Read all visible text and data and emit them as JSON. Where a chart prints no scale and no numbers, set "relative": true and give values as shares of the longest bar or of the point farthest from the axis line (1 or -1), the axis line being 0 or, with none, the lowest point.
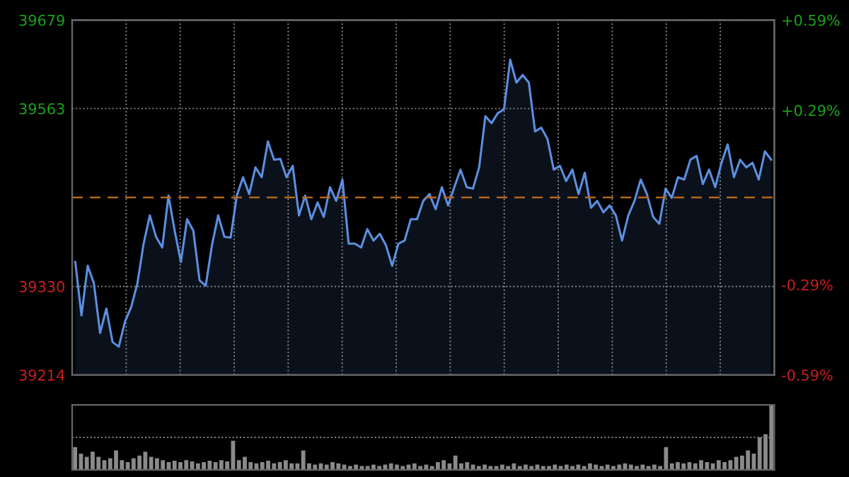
{
  "chart_data": [
    {
      "type": "area",
      "categories": [
        null,
        null,
        null,
        null,
        null,
        null,
        null,
        null,
        null,
        null,
        null,
        null,
        null,
        null,
        null,
        null,
        null,
        null,
        null,
        null,
        null,
        null,
        null,
        null,
        null,
        null,
        null,
        null,
        null,
        null,
        null,
        null,
        null,
        null,
        null,
        null,
        null,
        null,
        null,
        null,
        null,
        null,
        null,
        null,
        null,
        null,
        null,
        null,
        null,
        null,
        null,
        null,
        null,
        null,
        null,
        null,
        null,
        null,
        null,
        null,
        null,
        null,
        null,
        null,
        null,
        null,
        null,
        null,
        null,
        null,
        null,
        null,
        null,
        null,
        null,
        null,
        null,
        null,
        null,
        null,
        null,
        null,
        null,
        null,
        null,
        null,
        null,
        null,
        null,
        null,
        null,
        null,
        null,
        null,
        null,
        null,
        null,
        null,
        null,
        null,
        null,
        null,
        null,
        null,
        null,
        null,
        null,
        null,
        null,
        null,
        null,
        null,
        null
      ],
      "series": [
        {
          "color": "#5b8fe0",
          "values": [
            39362,
            39292,
            39357,
            39334,
            39269,
            39301,
            39257,
            39251,
            39284,
            39303,
            39334,
            39386,
            39423,
            39395,
            39381,
            39449,
            39403,
            39362,
            39418,
            39403,
            39338,
            39331,
            39384,
            39423,
            39395,
            39394,
            39449,
            39473,
            39451,
            39486,
            39473,
            39520,
            39496,
            39497,
            39473,
            39488,
            39423,
            39449,
            39418,
            39440,
            39421,
            39460,
            39442,
            39470,
            39386,
            39386,
            39381,
            39405,
            39390,
            39399,
            39384,
            39357,
            39386,
            39390,
            39418,
            39418,
            39442,
            39451,
            39431,
            39460,
            39436,
            39460,
            39483,
            39460,
            39458,
            39486,
            39553,
            39544,
            39557,
            39562,
            39627,
            39597,
            39607,
            39597,
            39533,
            39538,
            39523,
            39483,
            39488,
            39468,
            39483,
            39451,
            39479,
            39433,
            39442,
            39427,
            39436,
            39423,
            39390,
            39423,
            39442,
            39470,
            39451,
            39421,
            39412,
            39458,
            39446,
            39473,
            39470,
            39496,
            39501,
            39464,
            39483,
            39460,
            39492,
            39516,
            39473,
            39496,
            39486,
            39492,
            39470,
            39507,
            39496
          ]
        }
      ],
      "ylim": [
        39214,
        39679
      ],
      "yticks": [
        39214,
        39330,
        39563,
        39679
      ],
      "y2lim": [
        -0.59,
        0.59
      ],
      "y2ticks": [
        {
          "value": 0.59,
          "label": "+0.59%"
        },
        {
          "value": 0.29,
          "label": "+0.29%"
        },
        {
          "value": -0.29,
          "label": "-0.29%"
        },
        {
          "value": -0.59,
          "label": "-0.59%"
        }
      ],
      "ref_lines": [
        {
          "axis": "y",
          "value": 39446.5,
          "color": "#b5651d",
          "line_style": "dashed"
        }
      ],
      "grid": true,
      "legend": false
    },
    {
      "type": "bar",
      "relative": true,
      "color": "#8a8a8a",
      "ref_lines": [
        {
          "axis": "y",
          "value": 0.5,
          "color": "#888888",
          "line_style": "dotted"
        }
      ],
      "categories": [
        null,
        null,
        null,
        null,
        null,
        null,
        null,
        null,
        null,
        null,
        null,
        null,
        null,
        null,
        null,
        null,
        null,
        null,
        null,
        null,
        null,
        null,
        null,
        null,
        null,
        null,
        null,
        null,
        null,
        null,
        null,
        null,
        null,
        null,
        null,
        null,
        null,
        null,
        null,
        null,
        null,
        null,
        null,
        null,
        null,
        null,
        null,
        null,
        null,
        null,
        null,
        null,
        null,
        null,
        null,
        null,
        null,
        null,
        null,
        null,
        null,
        null,
        null,
        null,
        null,
        null,
        null,
        null,
        null,
        null,
        null,
        null,
        null,
        null,
        null,
        null,
        null,
        null,
        null,
        null,
        null,
        null,
        null,
        null,
        null,
        null,
        null,
        null,
        null,
        null,
        null,
        null,
        null,
        null,
        null,
        null,
        null,
        null,
        null,
        null,
        null,
        null,
        null,
        null,
        null,
        null,
        null,
        null,
        null,
        null,
        null,
        null,
        null,
        null,
        null,
        null,
        null,
        null,
        null,
        null
      ],
      "values": [
        0.35,
        0.25,
        0.2,
        0.28,
        0.2,
        0.15,
        0.18,
        0.3,
        0.15,
        0.12,
        0.18,
        0.22,
        0.28,
        0.2,
        0.18,
        0.15,
        0.12,
        0.14,
        0.12,
        0.15,
        0.13,
        0.1,
        0.12,
        0.14,
        0.12,
        0.15,
        0.13,
        0.45,
        0.15,
        0.2,
        0.12,
        0.1,
        0.12,
        0.14,
        0.1,
        0.12,
        0.15,
        0.1,
        0.1,
        0.3,
        0.1,
        0.08,
        0.1,
        0.08,
        0.12,
        0.1,
        0.08,
        0.06,
        0.08,
        0.06,
        0.06,
        0.08,
        0.06,
        0.08,
        0.1,
        0.08,
        0.06,
        0.08,
        0.1,
        0.06,
        0.08,
        0.06,
        0.12,
        0.15,
        0.1,
        0.22,
        0.1,
        0.12,
        0.08,
        0.06,
        0.08,
        0.06,
        0.06,
        0.08,
        0.06,
        0.1,
        0.06,
        0.08,
        0.06,
        0.08,
        0.06,
        0.06,
        0.08,
        0.06,
        0.08,
        0.06,
        0.08,
        0.06,
        0.1,
        0.08,
        0.06,
        0.08,
        0.06,
        0.08,
        0.1,
        0.08,
        0.06,
        0.08,
        0.06,
        0.08,
        0.06,
        0.35,
        0.1,
        0.12,
        0.1,
        0.12,
        0.1,
        0.15,
        0.12,
        0.1,
        0.15,
        0.12,
        0.15,
        0.2,
        0.22,
        0.3,
        0.25,
        0.5,
        0.55,
        1.0
      ]
    }
  ]
}
